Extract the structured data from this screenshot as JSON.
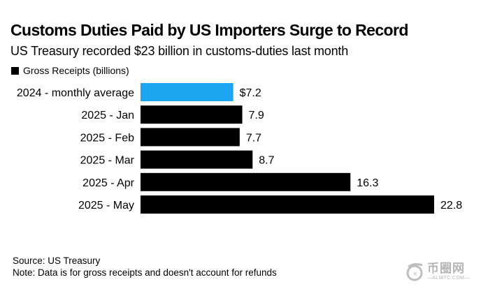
{
  "chart_data": {
    "type": "bar",
    "orientation": "horizontal",
    "title": "Customs Duties Paid by US Importers Surge to Record",
    "subtitle": "US Treasury recorded $23 billion in customs-duties last month",
    "legend": {
      "position": "top-left",
      "entries": [
        "Gross Receipts (billions)"
      ]
    },
    "categories": [
      "2024 - monthly average",
      "2025 - Jan",
      "2025 - Feb",
      "2025 - Mar",
      "2025 - Apr",
      "2025 - May"
    ],
    "series": [
      {
        "name": "Gross Receipts (billions)",
        "values": [
          7.2,
          7.9,
          7.7,
          8.7,
          16.3,
          22.8
        ]
      }
    ],
    "value_labels": [
      "$7.2",
      "7.9",
      "7.7",
      "8.7",
      "16.3",
      "22.8"
    ],
    "bar_colors": [
      "#1aa7ef",
      "#000000",
      "#000000",
      "#000000",
      "#000000",
      "#000000"
    ],
    "xlabel": "",
    "ylabel": "",
    "xlim": [
      0,
      22.8
    ],
    "grid": false
  },
  "footer": {
    "source": "Source: US Treasury",
    "note": "Note: Data is for gross receipts and doesn't account for refunds"
  },
  "watermark": {
    "icon": "alibtc-logo-icon",
    "text_cn": "币圈网",
    "text_en": "—ALIBTC.COM—"
  }
}
